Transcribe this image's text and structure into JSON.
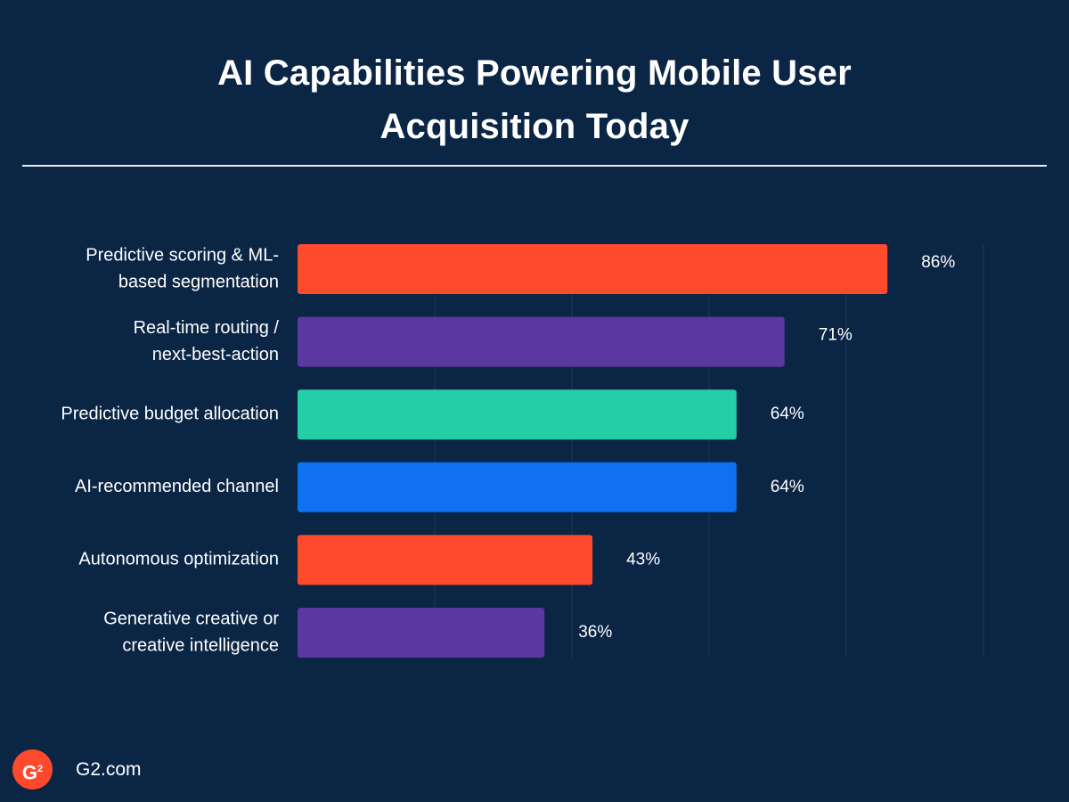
{
  "title_line1": "AI Capabilities Powering Mobile User",
  "title_line2": "Acquisition Today",
  "footer": {
    "logo_text": "G",
    "logo_superscript": "2",
    "site": "G2.com"
  },
  "colors": {
    "background": "#0b2545",
    "grid": "#1c3658",
    "text": "#ffffff"
  },
  "chart_data": {
    "type": "bar",
    "orientation": "horizontal",
    "title": "AI Capabilities Powering Mobile User Acquisition Today",
    "xlabel": "",
    "ylabel": "",
    "xlim": [
      0,
      100
    ],
    "grid": true,
    "legend": "none",
    "categories": [
      [
        "Predictive scoring & ML-",
        "based segmentation"
      ],
      [
        "Real-time routing /",
        "next-best-action"
      ],
      [
        "Predictive budget allocation"
      ],
      [
        "AI-recommended channel"
      ],
      [
        "Autonomous optimization"
      ],
      [
        "Generative creative or",
        "creative intelligence"
      ]
    ],
    "values": [
      86,
      71,
      64,
      64,
      43,
      36
    ],
    "value_labels": [
      "86%",
      "71%",
      "64%",
      "64%",
      "43%",
      "36%"
    ],
    "bar_colors": [
      "#ff4a2e",
      "#5b37a2",
      "#24cea6",
      "#0d71f0",
      "#ff4a2e",
      "#5b37a2"
    ]
  }
}
